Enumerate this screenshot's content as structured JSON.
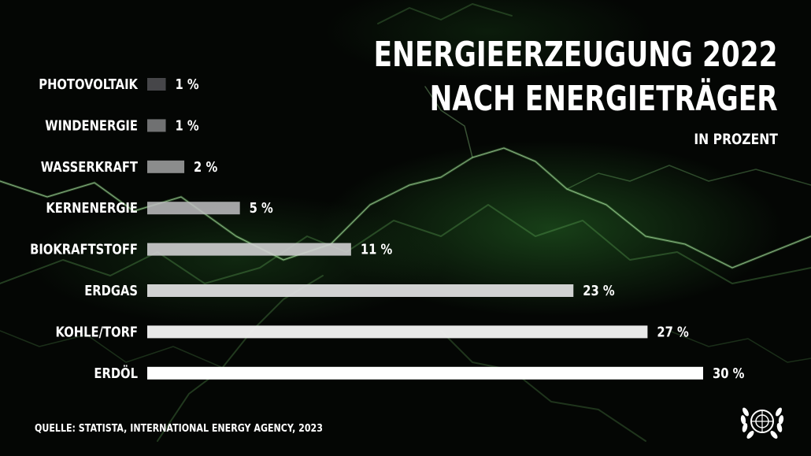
{
  "title_line1": "ENERGIEERZEUGUNG 2022",
  "title_line2": "NACH ENERGIETRÄGER",
  "subtitle": "IN PROZENT",
  "source": "QUELLE: STATISTA, INTERNATIONAL ENERGY AGENCY, 2023",
  "logo_icon": "un-emblem-icon",
  "colors": {
    "background": "#040604",
    "glow": "#3c8c3c",
    "bar_small": "#5c5c60",
    "bar_large": "#ffffff",
    "text": "#ffffff"
  },
  "chart_data": {
    "type": "bar",
    "orientation": "horizontal",
    "categories": [
      "PHOTOVOLTAIK",
      "WINDENERGIE",
      "WASSERKRAFT",
      "KERNENERGIE",
      "BIOKRAFTSTOFF",
      "ERDGAS",
      "KOHLE/TORF",
      "ERDÖL"
    ],
    "values": [
      1,
      1,
      2,
      5,
      11,
      23,
      27,
      30
    ],
    "value_labels": [
      "1 %",
      "1 %",
      "2 %",
      "5 %",
      "11 %",
      "23 %",
      "27 %",
      "30 %"
    ],
    "unit": "%",
    "xlim": [
      0,
      30
    ],
    "grid": false,
    "legend": "none"
  }
}
